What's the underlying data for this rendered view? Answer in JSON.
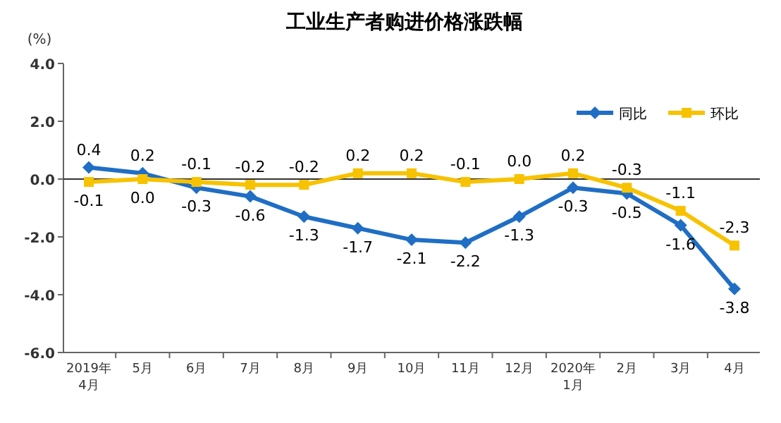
{
  "chart_data": {
    "type": "line",
    "title": "工业生产者购进价格涨跌幅",
    "ylabel": "(%)",
    "categories": [
      "2019年\n4月",
      "5月",
      "6月",
      "7月",
      "8月",
      "9月",
      "10月",
      "11月",
      "12月",
      "2020年\n1月",
      "2月",
      "3月",
      "4月"
    ],
    "series": [
      {
        "name": "同比",
        "color": "#1f6ec4",
        "marker": "diamond",
        "values": [
          0.4,
          0.2,
          -0.3,
          -0.6,
          -1.3,
          -1.7,
          -2.1,
          -2.2,
          -1.3,
          -0.3,
          -0.5,
          -1.6,
          -3.8
        ],
        "value_labels": [
          "0.4",
          "0.2",
          "-0.3",
          "-0.6",
          "-1.3",
          "-1.7",
          "-2.1",
          "-2.2",
          "-1.3",
          "-0.3",
          "-0.5",
          "-1.6",
          "-3.8"
        ]
      },
      {
        "name": "环比",
        "color": "#f7c200",
        "marker": "square",
        "values": [
          -0.1,
          0.0,
          -0.1,
          -0.2,
          -0.2,
          0.2,
          0.2,
          -0.1,
          0.0,
          0.2,
          -0.3,
          -1.1,
          -2.3
        ],
        "value_labels": [
          "-0.1",
          "0.0",
          "-0.1",
          "-0.2",
          "-0.2",
          "0.2",
          "0.2",
          "-0.1",
          "0.0",
          "0.2",
          "-0.3",
          "-1.1",
          "-2.3"
        ]
      }
    ],
    "ylim": [
      -6,
      4
    ],
    "yticks": [
      {
        "value": 4,
        "label": "4.0"
      },
      {
        "value": 2,
        "label": "2.0"
      },
      {
        "value": 0,
        "label": "0.0"
      },
      {
        "value": -2,
        "label": "-2.0"
      },
      {
        "value": -4,
        "label": "-4.0"
      },
      {
        "value": -6,
        "label": "-6.0"
      }
    ],
    "ref_lines": [
      {
        "axis": "y",
        "value": 0,
        "label": null,
        "color": "#333333"
      }
    ],
    "legend": "top right",
    "grid": false,
    "line_style": "solid"
  }
}
